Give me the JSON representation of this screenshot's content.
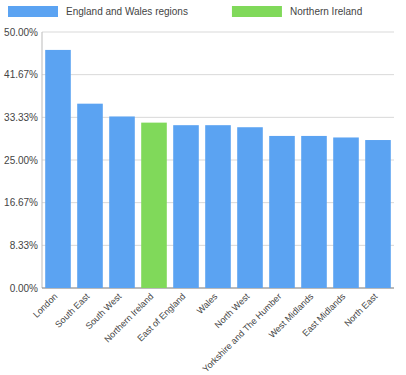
{
  "chart_data": {
    "type": "bar",
    "categories": [
      "London",
      "South East",
      "South West",
      "Northern Ireland",
      "East of England",
      "Wales",
      "North West",
      "Yorkshire and The Humber",
      "West Midlands",
      "East Midlands",
      "North East"
    ],
    "series": [
      {
        "name": "England and Wales regions",
        "color": "#5ba3f2",
        "values": [
          46.5,
          36.0,
          33.5,
          null,
          31.8,
          31.8,
          31.4,
          29.7,
          29.7,
          29.4,
          28.9
        ]
      },
      {
        "name": "Northern Ireland",
        "color": "#80d95a",
        "values": [
          null,
          null,
          null,
          32.3,
          null,
          null,
          null,
          null,
          null,
          null,
          null
        ]
      }
    ],
    "ylim": [
      0,
      50
    ],
    "yticks": [
      {
        "value": 0,
        "label": "0.00%"
      },
      {
        "value": 8.33,
        "label": "8.33%"
      },
      {
        "value": 16.67,
        "label": "16.67%"
      },
      {
        "value": 25,
        "label": "25.00%"
      },
      {
        "value": 33.33,
        "label": "33.33%"
      },
      {
        "value": 41.67,
        "label": "41.67%"
      },
      {
        "value": 50,
        "label": "50.00%"
      }
    ],
    "grid": true,
    "legend": "top"
  }
}
